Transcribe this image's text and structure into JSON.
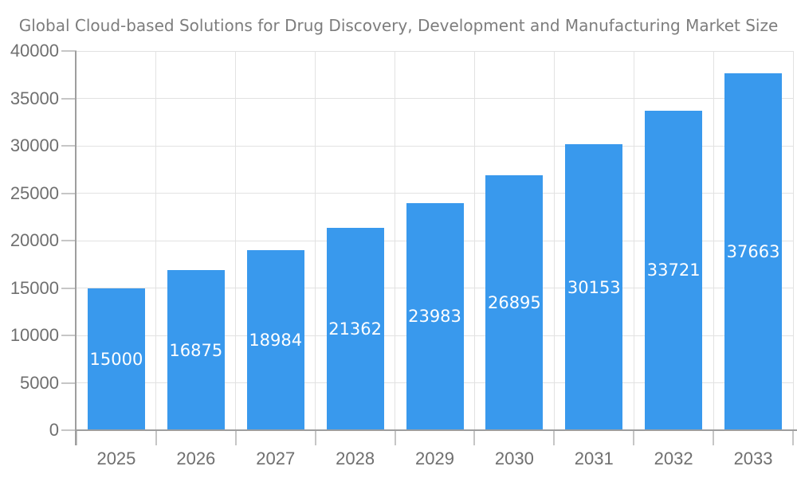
{
  "chart_data": {
    "type": "bar",
    "title": "Global Cloud-based Solutions for Drug Discovery, Development and Manufacturing Market Size",
    "categories": [
      "2025",
      "2026",
      "2027",
      "2028",
      "2029",
      "2030",
      "2031",
      "2032",
      "2033"
    ],
    "values": [
      15000,
      16875,
      18984,
      21362,
      23983,
      26895,
      30153,
      33721,
      37663
    ],
    "value_labels": [
      "15000",
      "16875",
      "18984",
      "21362",
      "23983",
      "26895",
      "30153",
      "33721",
      "37663"
    ],
    "xlabel": "",
    "ylabel": "",
    "ylim": [
      0,
      40000
    ],
    "ytick_step": 5000,
    "ytick_labels": [
      "0",
      "5000",
      "10000",
      "15000",
      "20000",
      "25000",
      "30000",
      "35000",
      "40000"
    ],
    "grid": true,
    "legend": false,
    "colors": {
      "bar": "#3999ed",
      "gridline": "#e2e2e2",
      "axis": "#9e9e9e",
      "tick_mark": "#c6c6c6",
      "axis_label_text": "#6f6f6f",
      "title_text": "#7d7d7d",
      "value_label_text": "#ffffff",
      "background": "#ffffff"
    }
  }
}
